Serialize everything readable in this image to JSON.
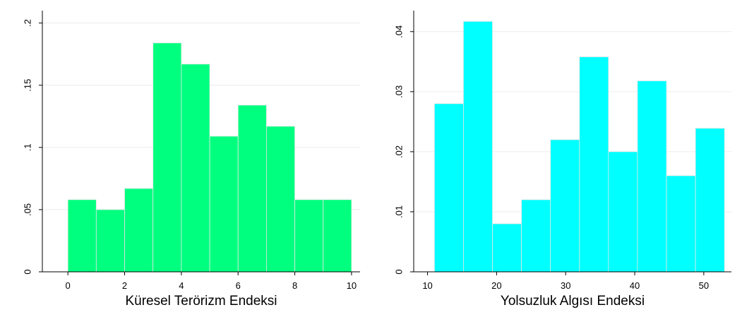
{
  "chart_data": [
    {
      "type": "bar",
      "xlabel": "Küresel Terörizm Endeksi",
      "ylabel": "",
      "bin_edges": [
        0,
        1,
        2,
        3,
        4,
        5,
        6,
        7,
        8,
        9,
        10
      ],
      "values": [
        0.058,
        0.05,
        0.067,
        0.184,
        0.167,
        0.109,
        0.134,
        0.117,
        0.058,
        0.058
      ],
      "xlim": [
        -0.9,
        10.3
      ],
      "ylim": [
        0,
        0.21
      ],
      "x_ticks": [
        0,
        2,
        4,
        6,
        8,
        10
      ],
      "x_tick_labels": [
        "0",
        "2",
        "4",
        "6",
        "8",
        "10"
      ],
      "y_ticks": [
        0,
        0.05,
        0.1,
        0.15,
        0.2
      ],
      "y_tick_labels": [
        "0",
        ".05",
        ".1",
        ".15",
        ".2"
      ],
      "bar_color": "#00ff7f",
      "grid": true
    },
    {
      "type": "bar",
      "xlabel": "Yolsuzluk Algısı Endeksi",
      "ylabel": "",
      "bin_edges": [
        11,
        15.2,
        19.4,
        23.6,
        27.8,
        32,
        36.2,
        40.4,
        44.6,
        48.8,
        53
      ],
      "values": [
        0.028,
        0.0417,
        0.008,
        0.012,
        0.022,
        0.0358,
        0.02,
        0.0318,
        0.016,
        0.0239
      ],
      "xlim": [
        8,
        54
      ],
      "ylim": [
        0,
        0.0435
      ],
      "x_ticks": [
        10,
        20,
        30,
        40,
        50
      ],
      "x_tick_labels": [
        "10",
        "20",
        "30",
        "40",
        "50"
      ],
      "y_ticks": [
        0,
        0.01,
        0.02,
        0.03,
        0.04
      ],
      "y_tick_labels": [
        "0",
        ".01",
        ".02",
        ".03",
        ".04"
      ],
      "bar_color": "#00ffff",
      "grid": true
    }
  ]
}
